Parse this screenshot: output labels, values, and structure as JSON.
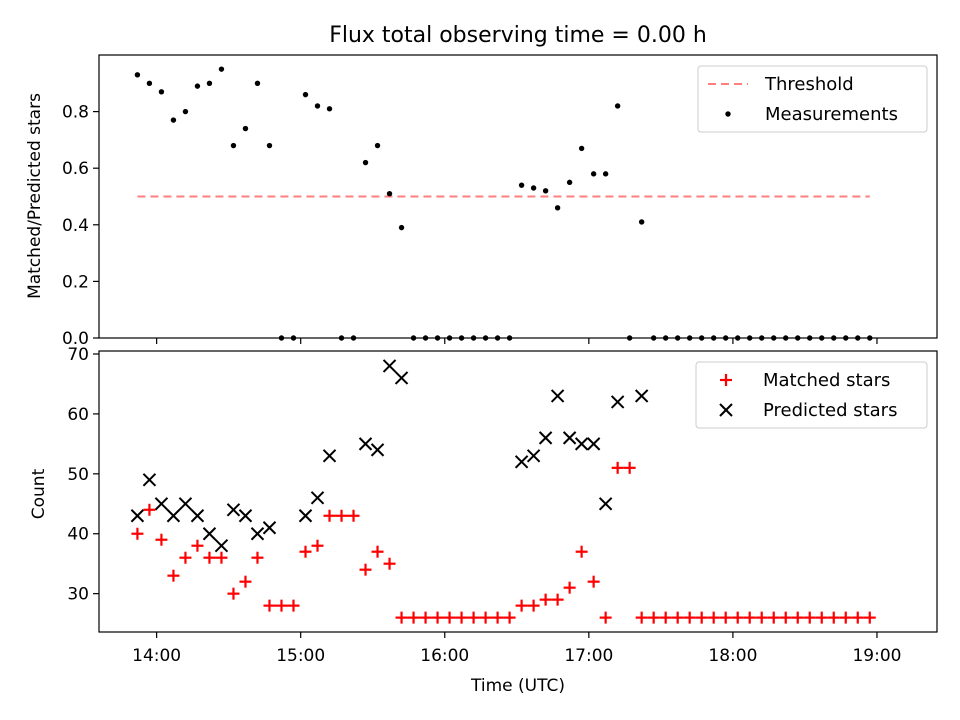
{
  "chart_data": [
    {
      "type": "scatter",
      "title": "Flux total observing time = 0.00 h",
      "xlabel": "",
      "ylabel": "Matched/Predicted stars",
      "ylim": [
        0,
        1.0
      ],
      "yticks": [
        "0.0",
        "0.2",
        "0.4",
        "0.6",
        "0.8"
      ],
      "ytick_values": [
        0.0,
        0.2,
        0.4,
        0.6,
        0.8
      ],
      "legend_position": "top-right",
      "threshold": {
        "name": "Threshold",
        "value": 0.5,
        "color": "#ff7f7f",
        "x_range": [
          "13:52",
          "18:57"
        ]
      },
      "series": [
        {
          "name": "Measurements",
          "color": "#000000",
          "points": [
            [
              "13:52",
              0.93
            ],
            [
              "13:57",
              0.9
            ],
            [
              "14:02",
              0.87
            ],
            [
              "14:07",
              0.77
            ],
            [
              "14:12",
              0.8
            ],
            [
              "14:17",
              0.89
            ],
            [
              "14:22",
              0.9
            ],
            [
              "14:27",
              0.95
            ],
            [
              "14:32",
              0.68
            ],
            [
              "14:37",
              0.74
            ],
            [
              "14:42",
              0.9
            ],
            [
              "14:47",
              0.68
            ],
            [
              "14:52",
              0.0
            ],
            [
              "14:57",
              0.0
            ],
            [
              "15:02",
              0.86
            ],
            [
              "15:07",
              0.82
            ],
            [
              "15:12",
              0.81
            ],
            [
              "15:17",
              0.0
            ],
            [
              "15:22",
              0.0
            ],
            [
              "15:27",
              0.62
            ],
            [
              "15:32",
              0.68
            ],
            [
              "15:37",
              0.51
            ],
            [
              "15:42",
              0.39
            ],
            [
              "15:47",
              0.0
            ],
            [
              "15:52",
              0.0
            ],
            [
              "15:57",
              0.0
            ],
            [
              "16:02",
              0.0
            ],
            [
              "16:07",
              0.0
            ],
            [
              "16:12",
              0.0
            ],
            [
              "16:17",
              0.0
            ],
            [
              "16:22",
              0.0
            ],
            [
              "16:27",
              0.0
            ],
            [
              "16:32",
              0.54
            ],
            [
              "16:37",
              0.53
            ],
            [
              "16:42",
              0.52
            ],
            [
              "16:47",
              0.46
            ],
            [
              "16:52",
              0.55
            ],
            [
              "16:57",
              0.67
            ],
            [
              "17:02",
              0.58
            ],
            [
              "17:07",
              0.58
            ],
            [
              "17:12",
              0.82
            ],
            [
              "17:17",
              0.0
            ],
            [
              "17:22",
              0.41
            ],
            [
              "17:27",
              0.0
            ],
            [
              "17:32",
              0.0
            ],
            [
              "17:37",
              0.0
            ],
            [
              "17:42",
              0.0
            ],
            [
              "17:47",
              0.0
            ],
            [
              "17:52",
              0.0
            ],
            [
              "17:57",
              0.0
            ],
            [
              "18:02",
              0.0
            ],
            [
              "18:07",
              0.0
            ],
            [
              "18:12",
              0.0
            ],
            [
              "18:17",
              0.0
            ],
            [
              "18:22",
              0.0
            ],
            [
              "18:27",
              0.0
            ],
            [
              "18:32",
              0.0
            ],
            [
              "18:37",
              0.0
            ],
            [
              "18:42",
              0.0
            ],
            [
              "18:47",
              0.0
            ],
            [
              "18:52",
              0.0
            ],
            [
              "18:57",
              0.0
            ]
          ]
        }
      ]
    },
    {
      "type": "scatter",
      "title": "",
      "xlabel": "Time (UTC)",
      "ylabel": "Count",
      "ylim": [
        23.6,
        70.5
      ],
      "yticks": [
        "30",
        "40",
        "50",
        "60",
        "70"
      ],
      "ytick_values": [
        30,
        40,
        50,
        60,
        70
      ],
      "xlim": [
        "13:36",
        "19:25"
      ],
      "xticks": [
        "14:00",
        "15:00",
        "16:00",
        "17:00",
        "18:00",
        "19:00"
      ],
      "legend_position": "top-right",
      "series": [
        {
          "name": "Matched stars",
          "marker": "plus",
          "color": "#ff0000",
          "points": [
            [
              "13:52",
              40
            ],
            [
              "13:57",
              44
            ],
            [
              "14:02",
              39
            ],
            [
              "14:07",
              33
            ],
            [
              "14:12",
              36
            ],
            [
              "14:17",
              38
            ],
            [
              "14:22",
              36
            ],
            [
              "14:27",
              36
            ],
            [
              "14:32",
              30
            ],
            [
              "14:37",
              32
            ],
            [
              "14:42",
              36
            ],
            [
              "14:47",
              28
            ],
            [
              "14:52",
              28
            ],
            [
              "14:57",
              28
            ],
            [
              "15:02",
              37
            ],
            [
              "15:07",
              38
            ],
            [
              "15:12",
              43
            ],
            [
              "15:17",
              43
            ],
            [
              "15:22",
              43
            ],
            [
              "15:27",
              34
            ],
            [
              "15:32",
              37
            ],
            [
              "15:37",
              35
            ],
            [
              "15:42",
              26
            ],
            [
              "15:47",
              26
            ],
            [
              "15:52",
              26
            ],
            [
              "15:57",
              26
            ],
            [
              "16:02",
              26
            ],
            [
              "16:07",
              26
            ],
            [
              "16:12",
              26
            ],
            [
              "16:17",
              26
            ],
            [
              "16:22",
              26
            ],
            [
              "16:27",
              26
            ],
            [
              "16:32",
              28
            ],
            [
              "16:37",
              28
            ],
            [
              "16:42",
              29
            ],
            [
              "16:47",
              29
            ],
            [
              "16:52",
              31
            ],
            [
              "16:57",
              37
            ],
            [
              "17:02",
              32
            ],
            [
              "17:07",
              26
            ],
            [
              "17:12",
              51
            ],
            [
              "17:17",
              51
            ],
            [
              "17:22",
              26
            ],
            [
              "17:27",
              26
            ],
            [
              "17:32",
              26
            ],
            [
              "17:37",
              26
            ],
            [
              "17:42",
              26
            ],
            [
              "17:47",
              26
            ],
            [
              "17:52",
              26
            ],
            [
              "17:57",
              26
            ],
            [
              "18:02",
              26
            ],
            [
              "18:07",
              26
            ],
            [
              "18:12",
              26
            ],
            [
              "18:17",
              26
            ],
            [
              "18:22",
              26
            ],
            [
              "18:27",
              26
            ],
            [
              "18:32",
              26
            ],
            [
              "18:37",
              26
            ],
            [
              "18:42",
              26
            ],
            [
              "18:47",
              26
            ],
            [
              "18:52",
              26
            ],
            [
              "18:57",
              26
            ]
          ]
        },
        {
          "name": "Predicted stars",
          "marker": "x",
          "color": "#000000",
          "points": [
            [
              "13:52",
              43
            ],
            [
              "13:57",
              49
            ],
            [
              "14:02",
              45
            ],
            [
              "14:07",
              43
            ],
            [
              "14:12",
              45
            ],
            [
              "14:17",
              43
            ],
            [
              "14:22",
              40
            ],
            [
              "14:27",
              38
            ],
            [
              "14:32",
              44
            ],
            [
              "14:37",
              43
            ],
            [
              "14:42",
              40
            ],
            [
              "14:47",
              41
            ],
            [
              "15:02",
              43
            ],
            [
              "15:07",
              46
            ],
            [
              "15:12",
              53
            ],
            [
              "15:27",
              55
            ],
            [
              "15:32",
              54
            ],
            [
              "15:37",
              68
            ],
            [
              "15:42",
              66
            ],
            [
              "16:32",
              52
            ],
            [
              "16:37",
              53
            ],
            [
              "16:42",
              56
            ],
            [
              "16:47",
              63
            ],
            [
              "16:52",
              56
            ],
            [
              "16:57",
              55
            ],
            [
              "17:02",
              55
            ],
            [
              "17:07",
              45
            ],
            [
              "17:12",
              62
            ],
            [
              "17:22",
              63
            ]
          ]
        }
      ]
    }
  ]
}
